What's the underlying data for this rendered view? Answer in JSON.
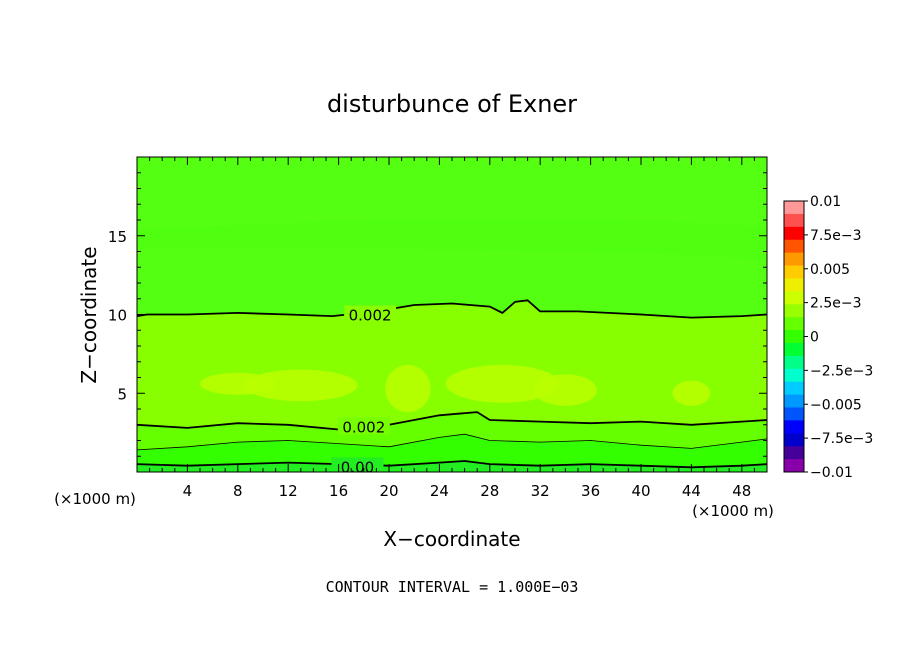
{
  "chart_data": {
    "type": "contour",
    "title": "disturbunce of Exner",
    "xlabel": "X−coordinate",
    "ylabel": "Z−coordinate",
    "x_unit": "(×1000 m)",
    "x_unit_right": "(×1000 m)",
    "xlim": [
      0,
      50
    ],
    "ylim": [
      0,
      20
    ],
    "x_ticks": [
      4,
      8,
      12,
      16,
      20,
      24,
      28,
      32,
      36,
      40,
      44,
      48
    ],
    "y_ticks": [
      5,
      10,
      15
    ],
    "footer": "CONTOUR INTERVAL = 1.000E−03",
    "contours": [
      {
        "value": 0.002,
        "label": "0.002",
        "x": [
          0,
          0.8,
          4,
          8,
          12,
          15.5,
          19,
          22,
          25,
          28,
          29,
          30,
          31,
          32,
          35,
          40,
          44,
          48,
          50
        ],
        "y": [
          9.9,
          10.0,
          10.0,
          10.1,
          10.0,
          9.9,
          10.2,
          10.6,
          10.7,
          10.5,
          10.1,
          10.8,
          10.9,
          10.2,
          10.2,
          10.0,
          9.8,
          9.9,
          10.0
        ]
      },
      {
        "value": 0.002,
        "label": "0.002",
        "x": [
          0,
          4,
          8,
          12,
          16,
          20,
          24,
          25.5,
          27,
          28,
          32,
          36,
          40,
          44,
          48,
          50
        ],
        "y": [
          3.0,
          2.8,
          3.1,
          3.0,
          2.7,
          3.0,
          3.6,
          3.7,
          3.8,
          3.3,
          3.2,
          3.1,
          3.2,
          3.0,
          3.2,
          3.3
        ]
      },
      {
        "value": 0.001,
        "label": "",
        "x": [
          0,
          4,
          8,
          12,
          16,
          20,
          24,
          26,
          28,
          32,
          36,
          40,
          44,
          48,
          50
        ],
        "y": [
          1.4,
          1.6,
          1.9,
          2.0,
          1.8,
          1.6,
          2.2,
          2.4,
          2.0,
          1.9,
          2.0,
          1.7,
          1.5,
          1.9,
          2.1
        ]
      },
      {
        "value": 0,
        "label": "0.00",
        "x": [
          0,
          4,
          8,
          12,
          16,
          20,
          24,
          26,
          28,
          32,
          36,
          40,
          44,
          48,
          50
        ],
        "y": [
          0.5,
          0.4,
          0.5,
          0.6,
          0.5,
          0.4,
          0.6,
          0.7,
          0.5,
          0.4,
          0.5,
          0.4,
          0.3,
          0.4,
          0.5
        ]
      }
    ],
    "highlight_patches": [
      {
        "cx": 13,
        "cy": 5.5,
        "rx": 4.5,
        "ry": 1.0
      },
      {
        "cx": 21.5,
        "cy": 5.3,
        "rx": 1.8,
        "ry": 1.5
      },
      {
        "cx": 29,
        "cy": 5.6,
        "rx": 4.5,
        "ry": 1.2
      },
      {
        "cx": 34,
        "cy": 5.2,
        "rx": 2.5,
        "ry": 1.0
      },
      {
        "cx": 44,
        "cy": 5.0,
        "rx": 1.5,
        "ry": 0.8
      },
      {
        "cx": 8,
        "cy": 5.6,
        "rx": 3,
        "ry": 0.7
      }
    ],
    "colorbar": {
      "labels": [
        "0.01",
        "7.5e−3",
        "0.005",
        "2.5e−3",
        "0",
        "−2.5e−3",
        "−0.005",
        "−7.5e−3",
        "−0.01"
      ],
      "colors": [
        "#ff9999",
        "#ff5050",
        "#ff0000",
        "#ff5500",
        "#ff9900",
        "#ffcc00",
        "#eeee00",
        "#ccff00",
        "#99ff00",
        "#66ff00",
        "#33ff00",
        "#00ff33",
        "#00ff88",
        "#00ffcc",
        "#00ccff",
        "#0099ff",
        "#0055ff",
        "#0000ff",
        "#0000cc",
        "#440099",
        "#8800aa"
      ]
    },
    "fill_colors": {
      "above_002": "#55ff11",
      "band_001_002": "#88ff00",
      "band_0_001": "#33ff00",
      "below_0": "#22ee22",
      "high": "#bbff00"
    }
  }
}
